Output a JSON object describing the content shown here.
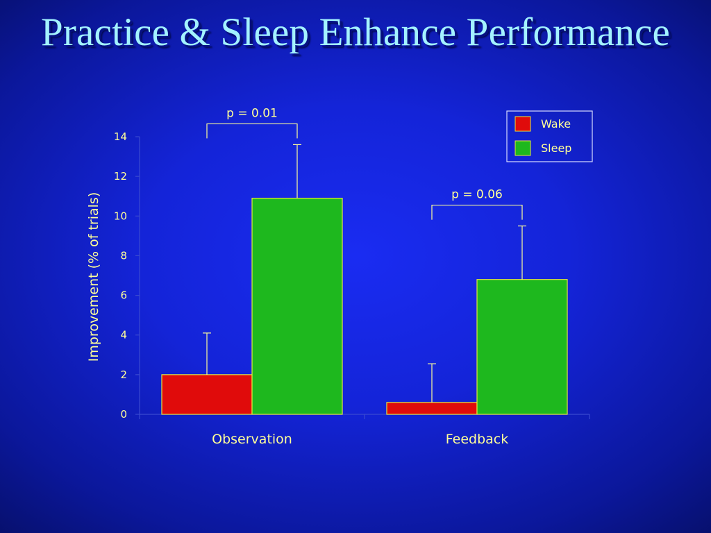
{
  "slide": {
    "title": "Practice & Sleep Enhance Performance"
  },
  "chart_data": {
    "type": "bar",
    "categories": [
      "Observation",
      "Feedback"
    ],
    "series": [
      {
        "name": "Wake",
        "values": [
          2.0,
          0.6
        ],
        "errors": [
          2.1,
          1.95
        ],
        "color": "#e00b0b"
      },
      {
        "name": "Sleep",
        "values": [
          10.9,
          6.8
        ],
        "errors": [
          2.7,
          2.7
        ],
        "color": "#1eb81e"
      }
    ],
    "title": "",
    "xlabel": "",
    "ylabel": "Improvement (% of trials)",
    "ylim": [
      0,
      14
    ],
    "yticks": [
      0,
      2,
      4,
      6,
      8,
      10,
      12,
      14
    ],
    "grid": false,
    "legend": "top-right",
    "annotations": [
      {
        "category_index": 0,
        "text": "p = 0.01"
      },
      {
        "category_index": 1,
        "text": "p = 0.06"
      }
    ],
    "colors": {
      "text": "#ffff99",
      "axis": "#3a4ad0",
      "bar_outline": "#e6e640",
      "error": "#ffff99"
    }
  }
}
